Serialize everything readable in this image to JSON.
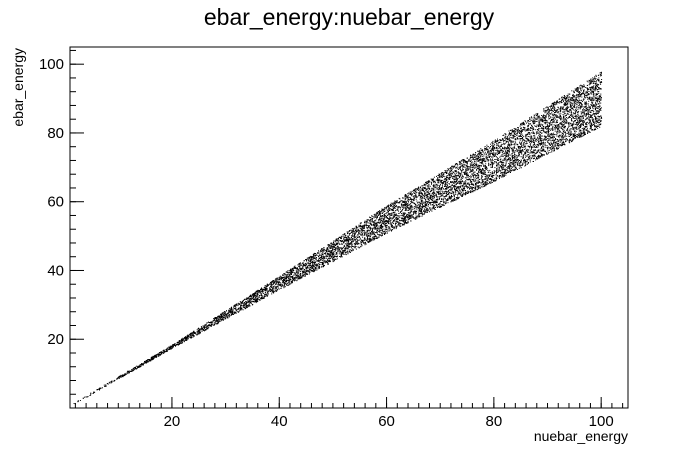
{
  "chart_data": {
    "type": "scatter",
    "title": "ebar_energy:nuebar_energy",
    "xlabel": "nuebar_energy",
    "ylabel": "ebar_energy",
    "xlim": [
      1,
      105
    ],
    "ylim": [
      0,
      105
    ],
    "x_ticks": [
      20,
      40,
      60,
      80,
      100
    ],
    "y_ticks": [
      20,
      40,
      60,
      80,
      100
    ],
    "x_minor_step": 2,
    "y_minor_step": 4,
    "grid": false,
    "legend": "none",
    "marker_color": "#000000",
    "series": [
      {
        "x_range": [
          1,
          100
        ],
        "y_envelope_at_x": [
          {
            "x": 1,
            "y_min": 0.5,
            "y_max": 1.0
          },
          {
            "x": 20,
            "y_min": 17.5,
            "y_max": 18.5
          },
          {
            "x": 40,
            "y_min": 34.5,
            "y_max": 38.5
          },
          {
            "x": 60,
            "y_min": 51,
            "y_max": 59
          },
          {
            "x": 80,
            "y_min": 66,
            "y_max": 78
          },
          {
            "x": 100,
            "y_min": 82,
            "y_max": 98
          }
        ]
      }
    ]
  }
}
